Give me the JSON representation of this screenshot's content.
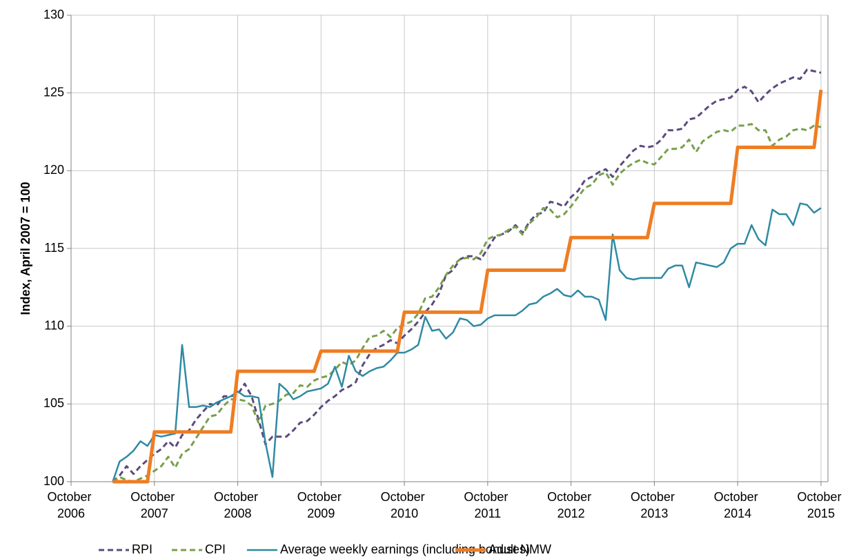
{
  "chart_data": {
    "type": "line",
    "y_label": "Index, April 2007 = 100",
    "x": [
      "2007-04",
      "2007-05",
      "2007-06",
      "2007-07",
      "2007-08",
      "2007-09",
      "2007-10",
      "2007-11",
      "2007-12",
      "2008-01",
      "2008-02",
      "2008-03",
      "2008-04",
      "2008-05",
      "2008-06",
      "2008-07",
      "2008-08",
      "2008-09",
      "2008-10",
      "2008-11",
      "2008-12",
      "2009-01",
      "2009-02",
      "2009-03",
      "2009-04",
      "2009-05",
      "2009-06",
      "2009-07",
      "2009-08",
      "2009-09",
      "2009-10",
      "2009-11",
      "2009-12",
      "2010-01",
      "2010-02",
      "2010-03",
      "2010-04",
      "2010-05",
      "2010-06",
      "2010-07",
      "2010-08",
      "2010-09",
      "2010-10",
      "2010-11",
      "2010-12",
      "2011-01",
      "2011-02",
      "2011-03",
      "2011-04",
      "2011-05",
      "2011-06",
      "2011-07",
      "2011-08",
      "2011-09",
      "2011-10",
      "2011-11",
      "2011-12",
      "2012-01",
      "2012-02",
      "2012-03",
      "2012-04",
      "2012-05",
      "2012-06",
      "2012-07",
      "2012-08",
      "2012-09",
      "2012-10",
      "2012-11",
      "2012-12",
      "2013-01",
      "2013-02",
      "2013-03",
      "2013-04",
      "2013-05",
      "2013-06",
      "2013-07",
      "2013-08",
      "2013-09",
      "2013-10",
      "2013-11",
      "2013-12",
      "2014-01",
      "2014-02",
      "2014-03",
      "2014-04",
      "2014-05",
      "2014-06",
      "2014-07",
      "2014-08",
      "2014-09",
      "2014-10",
      "2014-11",
      "2014-12",
      "2015-01",
      "2015-02",
      "2015-03",
      "2015-04",
      "2015-05",
      "2015-06",
      "2015-07",
      "2015-08",
      "2015-09",
      "2015-10"
    ],
    "series": [
      {
        "name": "RPI",
        "color": "#5b4a7e",
        "line_style": "dashed",
        "values": [
          100,
          100.4,
          101,
          100.5,
          101,
          101.4,
          101.8,
          102.1,
          102.6,
          102.2,
          103,
          103.3,
          104,
          104.5,
          105,
          104.9,
          105.5,
          105.5,
          105.6,
          106.3,
          105.5,
          104,
          102.4,
          102.9,
          102.9,
          102.9,
          103.3,
          103.8,
          103.9,
          104.3,
          104.8,
          105.2,
          105.5,
          105.9,
          106.1,
          106.4,
          107.5,
          108.2,
          108.6,
          108.8,
          109.1,
          108.9,
          109.4,
          109.8,
          110.3,
          110.9,
          111.4,
          112.1,
          113.3,
          113.6,
          114.3,
          114.5,
          114.5,
          114.3,
          115,
          115.7,
          115.9,
          116.1,
          116.5,
          116,
          116.7,
          117.2,
          117.3,
          118,
          117.9,
          117.7,
          118.3,
          118.7,
          119.4,
          119.6,
          119.9,
          120.1,
          119.6,
          120.3,
          120.8,
          121.3,
          121.6,
          121.5,
          121.6,
          122,
          122.6,
          122.6,
          122.7,
          123.3,
          123.4,
          123.8,
          124.2,
          124.5,
          124.6,
          124.7,
          125.2,
          125.4,
          125.1,
          124.4,
          124.9,
          125.3,
          125.6,
          125.8,
          126,
          125.9,
          126.5,
          126.4,
          126.3
        ]
      },
      {
        "name": "CPI",
        "color": "#77a04a",
        "line_style": "dashed",
        "values": [
          100,
          100.3,
          100.1,
          100,
          100.2,
          100.4,
          100.7,
          101,
          101.6,
          100.9,
          101.8,
          102.1,
          102.8,
          103.5,
          104.2,
          104.3,
          104.9,
          105.3,
          105.3,
          105.2,
          104.9,
          103.8,
          104.9,
          105,
          105.2,
          105.6,
          105.7,
          106.2,
          106.1,
          106.5,
          106.7,
          106.8,
          107.2,
          107.7,
          107.5,
          107.8,
          108.6,
          109.3,
          109.4,
          109.7,
          109.3,
          109.9,
          110.1,
          110.3,
          110.8,
          111.8,
          111.9,
          112.5,
          113.3,
          113.9,
          114.3,
          114.4,
          114.3,
          114.7,
          115.6,
          115.8,
          115.9,
          116.2,
          116.4,
          115.9,
          116.6,
          117,
          117.6,
          117.5,
          117,
          117.2,
          117.7,
          118.3,
          118.9,
          119.1,
          119.7,
          119.9,
          119.1,
          119.8,
          120.2,
          120.5,
          120.7,
          120.5,
          120.4,
          120.9,
          121.4,
          121.4,
          121.5,
          122,
          121.2,
          121.9,
          122.2,
          122.5,
          122.6,
          122.5,
          122.9,
          122.9,
          123,
          122.6,
          122.6,
          121.6,
          122,
          122.2,
          122.6,
          122.7,
          122.6,
          122.9,
          122.8
        ]
      },
      {
        "name": "Average weekly earnings (including bonuses)",
        "color": "#2e8aa3",
        "line_style": "solid",
        "values": [
          100,
          101.3,
          101.6,
          102,
          102.6,
          102.3,
          103,
          102.9,
          103,
          103.1,
          108.8,
          104.8,
          104.8,
          104.9,
          104.8,
          105.1,
          105.3,
          105.5,
          105.8,
          105.5,
          105.5,
          105.4,
          102.5,
          100.3,
          106.3,
          105.9,
          105.3,
          105.5,
          105.8,
          105.9,
          106,
          106.3,
          107.4,
          106.1,
          108.1,
          107.1,
          106.8,
          107.1,
          107.3,
          107.4,
          107.8,
          108.3,
          108.3,
          108.5,
          108.8,
          110.6,
          109.7,
          109.8,
          109.2,
          109.6,
          110.5,
          110.4,
          110,
          110.1,
          110.5,
          110.7,
          110.7,
          110.7,
          110.7,
          111,
          111.4,
          111.5,
          111.9,
          112.1,
          112.4,
          112,
          111.9,
          112.3,
          111.9,
          111.9,
          111.7,
          110.4,
          115.9,
          113.6,
          113.1,
          113,
          113.1,
          113.1,
          113.1,
          113.1,
          113.7,
          113.9,
          113.9,
          112.5,
          114.1,
          114,
          113.9,
          113.8,
          114.1,
          115,
          115.3,
          115.3,
          116.5,
          115.6,
          115.2,
          117.5,
          117.2,
          117.2,
          116.5,
          117.9,
          117.8,
          117.3,
          117.6
        ]
      },
      {
        "name": "Adult NMW",
        "color": "#ef7d22",
        "line_style": "thick",
        "values": [
          100,
          100,
          100,
          100,
          100,
          100,
          103.2,
          103.2,
          103.2,
          103.2,
          103.2,
          103.2,
          103.2,
          103.2,
          103.2,
          103.2,
          103.2,
          103.2,
          107.1,
          107.1,
          107.1,
          107.1,
          107.1,
          107.1,
          107.1,
          107.1,
          107.1,
          107.1,
          107.1,
          107.1,
          108.4,
          108.4,
          108.4,
          108.4,
          108.4,
          108.4,
          108.4,
          108.4,
          108.4,
          108.4,
          108.4,
          108.4,
          110.9,
          110.9,
          110.9,
          110.9,
          110.9,
          110.9,
          110.9,
          110.9,
          110.9,
          110.9,
          110.9,
          110.9,
          113.6,
          113.6,
          113.6,
          113.6,
          113.6,
          113.6,
          113.6,
          113.6,
          113.6,
          113.6,
          113.6,
          113.6,
          115.7,
          115.7,
          115.7,
          115.7,
          115.7,
          115.7,
          115.7,
          115.7,
          115.7,
          115.7,
          115.7,
          115.7,
          117.9,
          117.9,
          117.9,
          117.9,
          117.9,
          117.9,
          117.9,
          117.9,
          117.9,
          117.9,
          117.9,
          117.9,
          121.5,
          121.5,
          121.5,
          121.5,
          121.5,
          121.5,
          121.5,
          121.5,
          121.5,
          121.5,
          121.5,
          121.5,
          125.2
        ]
      }
    ],
    "xlim": [
      "2006-10",
      "2015-11"
    ],
    "xticks": [
      {
        "value": "2006-10",
        "label": "October 2006"
      },
      {
        "value": "2007-10",
        "label": "October 2007"
      },
      {
        "value": "2008-10",
        "label": "October 2008"
      },
      {
        "value": "2009-10",
        "label": "October 2009"
      },
      {
        "value": "2010-10",
        "label": "October 2010"
      },
      {
        "value": "2011-10",
        "label": "October 2011"
      },
      {
        "value": "2012-10",
        "label": "October 2012"
      },
      {
        "value": "2013-10",
        "label": "October 2013"
      },
      {
        "value": "2014-10",
        "label": "October 2014"
      },
      {
        "value": "2015-10",
        "label": "October 2015"
      }
    ],
    "ylim": [
      100,
      130
    ],
    "yticks": [
      100,
      105,
      110,
      115,
      120,
      125,
      130
    ],
    "grid": true,
    "legend": "bottom"
  }
}
